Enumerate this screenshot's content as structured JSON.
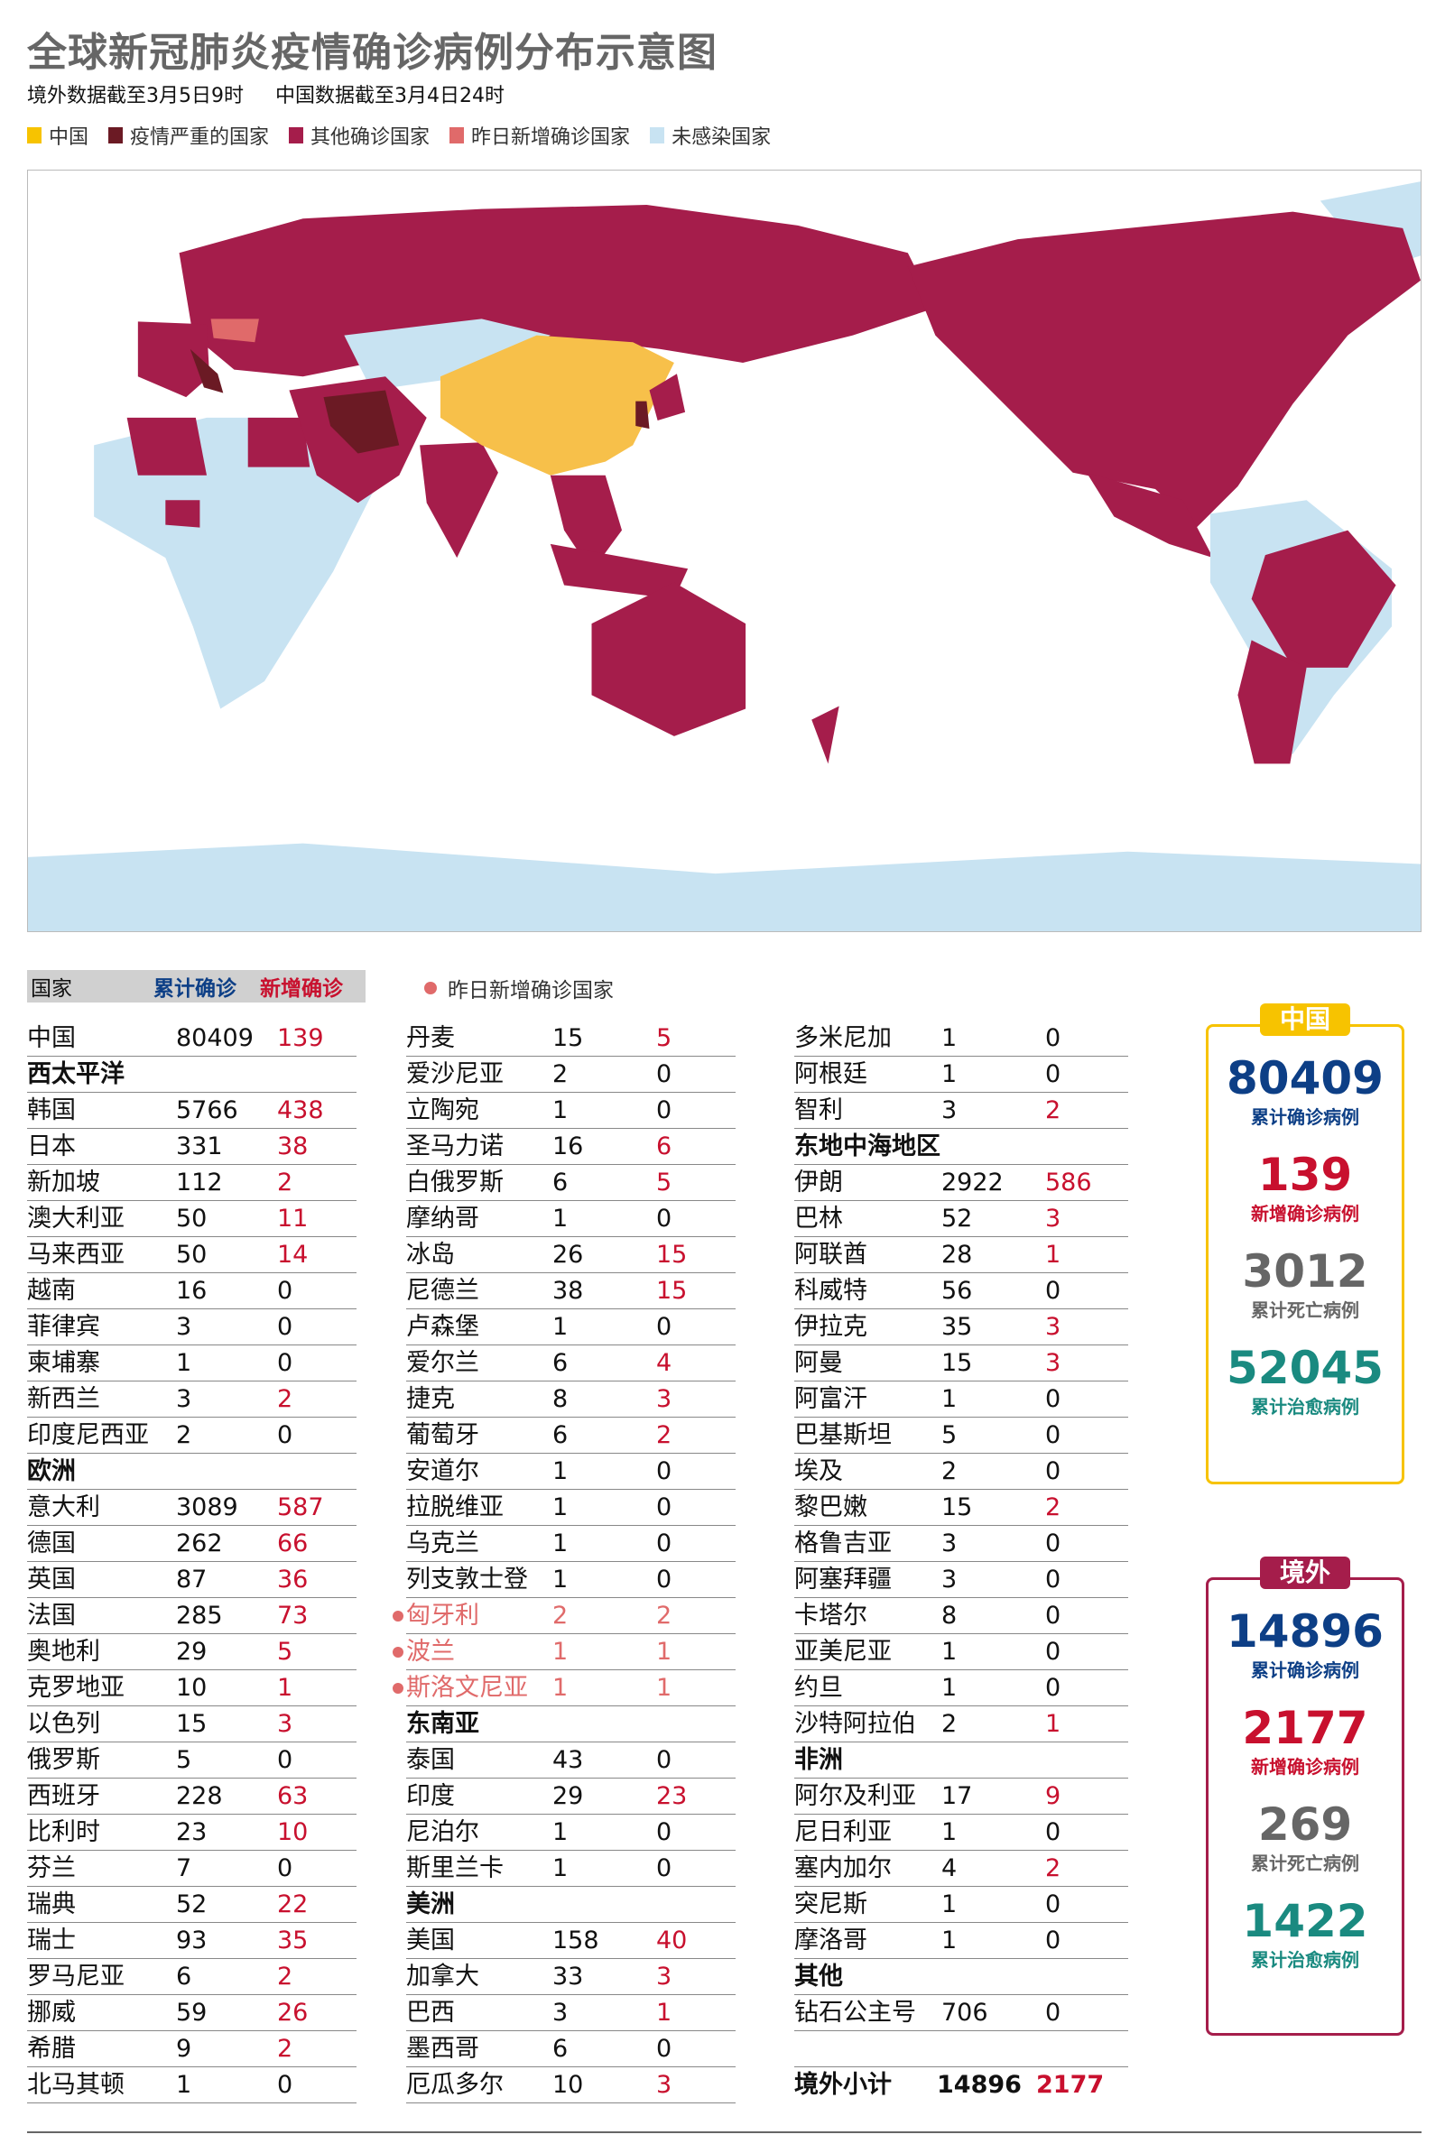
{
  "header": {
    "title": "全球新冠肺炎疫情确诊病例分布示意图",
    "subtitle_overseas": "境外数据截至3月5日9时",
    "subtitle_china": "中国数据截至3月4日24时"
  },
  "legend": [
    {
      "label": "中国",
      "color": "#f7c300"
    },
    {
      "label": "疫情严重的国家",
      "color": "#6b1a24"
    },
    {
      "label": "其他确诊国家",
      "color": "#a51d4b"
    },
    {
      "label": "昨日新增确诊国家",
      "color": "#e06a6a"
    },
    {
      "label": "未感染国家",
      "color": "#c8e3f2"
    }
  ],
  "table": {
    "header": {
      "country": "国家",
      "total": "累计确诊",
      "new": "新增确诊"
    },
    "dot_legend": "昨日新增确诊国家",
    "columns": [
      [
        {
          "name": "中国",
          "total": "80409",
          "new": "139"
        },
        {
          "name": "西太平洋",
          "region": true
        },
        {
          "name": "韩国",
          "total": "5766",
          "new": "438"
        },
        {
          "name": "日本",
          "total": "331",
          "new": "38"
        },
        {
          "name": "新加坡",
          "total": "112",
          "new": "2"
        },
        {
          "name": "澳大利亚",
          "total": "50",
          "new": "11"
        },
        {
          "name": "马来西亚",
          "total": "50",
          "new": "14"
        },
        {
          "name": "越南",
          "total": "16",
          "new": "0"
        },
        {
          "name": "菲律宾",
          "total": "3",
          "new": "0"
        },
        {
          "name": "柬埔寨",
          "total": "1",
          "new": "0"
        },
        {
          "name": "新西兰",
          "total": "3",
          "new": "2"
        },
        {
          "name": "印度尼西亚",
          "total": "2",
          "new": "0"
        },
        {
          "name": "欧洲",
          "region": true
        },
        {
          "name": "意大利",
          "total": "3089",
          "new": "587"
        },
        {
          "name": "德国",
          "total": "262",
          "new": "66"
        },
        {
          "name": "英国",
          "total": "87",
          "new": "36"
        },
        {
          "name": "法国",
          "total": "285",
          "new": "73"
        },
        {
          "name": "奥地利",
          "total": "29",
          "new": "5"
        },
        {
          "name": "克罗地亚",
          "total": "10",
          "new": "1"
        },
        {
          "name": "以色列",
          "total": "15",
          "new": "3"
        },
        {
          "name": "俄罗斯",
          "total": "5",
          "new": "0"
        },
        {
          "name": "西班牙",
          "total": "228",
          "new": "63"
        },
        {
          "name": "比利时",
          "total": "23",
          "new": "10"
        },
        {
          "name": "芬兰",
          "total": "7",
          "new": "0"
        },
        {
          "name": "瑞典",
          "total": "52",
          "new": "22"
        },
        {
          "name": "瑞士",
          "total": "93",
          "new": "35"
        },
        {
          "name": "罗马尼亚",
          "total": "6",
          "new": "2"
        },
        {
          "name": "挪威",
          "total": "59",
          "new": "26"
        },
        {
          "name": "希腊",
          "total": "9",
          "new": "2"
        },
        {
          "name": "北马其顿",
          "total": "1",
          "new": "0"
        }
      ],
      [
        {
          "name": "丹麦",
          "total": "15",
          "new": "5"
        },
        {
          "name": "爱沙尼亚",
          "total": "2",
          "new": "0"
        },
        {
          "name": "立陶宛",
          "total": "1",
          "new": "0"
        },
        {
          "name": "圣马力诺",
          "total": "16",
          "new": "6"
        },
        {
          "name": "白俄罗斯",
          "total": "6",
          "new": "5"
        },
        {
          "name": "摩纳哥",
          "total": "1",
          "new": "0"
        },
        {
          "name": "冰岛",
          "total": "26",
          "new": "15"
        },
        {
          "name": "尼德兰",
          "total": "38",
          "new": "15"
        },
        {
          "name": "卢森堡",
          "total": "1",
          "new": "0"
        },
        {
          "name": "爱尔兰",
          "total": "6",
          "new": "4"
        },
        {
          "name": "捷克",
          "total": "8",
          "new": "3"
        },
        {
          "name": "葡萄牙",
          "total": "6",
          "new": "2"
        },
        {
          "name": "安道尔",
          "total": "1",
          "new": "0"
        },
        {
          "name": "拉脱维亚",
          "total": "1",
          "new": "0"
        },
        {
          "name": "乌克兰",
          "total": "1",
          "new": "0"
        },
        {
          "name": "列支敦士登",
          "total": "1",
          "new": "0"
        },
        {
          "name": "匈牙利",
          "total": "2",
          "new": "2",
          "highlight": true
        },
        {
          "name": "波兰",
          "total": "1",
          "new": "1",
          "highlight": true
        },
        {
          "name": "斯洛文尼亚",
          "total": "1",
          "new": "1",
          "highlight": true
        },
        {
          "name": "东南亚",
          "region": true
        },
        {
          "name": "泰国",
          "total": "43",
          "new": "0"
        },
        {
          "name": "印度",
          "total": "29",
          "new": "23"
        },
        {
          "name": "尼泊尔",
          "total": "1",
          "new": "0"
        },
        {
          "name": "斯里兰卡",
          "total": "1",
          "new": "0"
        },
        {
          "name": "美洲",
          "region": true
        },
        {
          "name": "美国",
          "total": "158",
          "new": "40"
        },
        {
          "name": "加拿大",
          "total": "33",
          "new": "3"
        },
        {
          "name": "巴西",
          "total": "3",
          "new": "1"
        },
        {
          "name": "墨西哥",
          "total": "6",
          "new": "0"
        },
        {
          "name": "厄瓜多尔",
          "total": "10",
          "new": "3"
        }
      ],
      [
        {
          "name": "多米尼加",
          "total": "1",
          "new": "0"
        },
        {
          "name": "阿根廷",
          "total": "1",
          "new": "0"
        },
        {
          "name": "智利",
          "total": "3",
          "new": "2"
        },
        {
          "name": "东地中海地区",
          "region": true
        },
        {
          "name": "伊朗",
          "total": "2922",
          "new": "586"
        },
        {
          "name": "巴林",
          "total": "52",
          "new": "3"
        },
        {
          "name": "阿联酋",
          "total": "28",
          "new": "1"
        },
        {
          "name": "科威特",
          "total": "56",
          "new": "0"
        },
        {
          "name": "伊拉克",
          "total": "35",
          "new": "3"
        },
        {
          "name": "阿曼",
          "total": "15",
          "new": "3"
        },
        {
          "name": "阿富汗",
          "total": "1",
          "new": "0"
        },
        {
          "name": "巴基斯坦",
          "total": "5",
          "new": "0"
        },
        {
          "name": "埃及",
          "total": "2",
          "new": "0"
        },
        {
          "name": "黎巴嫩",
          "total": "15",
          "new": "2"
        },
        {
          "name": "格鲁吉亚",
          "total": "3",
          "new": "0"
        },
        {
          "name": "阿塞拜疆",
          "total": "3",
          "new": "0"
        },
        {
          "name": "卡塔尔",
          "total": "8",
          "new": "0"
        },
        {
          "name": "亚美尼亚",
          "total": "1",
          "new": "0"
        },
        {
          "name": "约旦",
          "total": "1",
          "new": "0"
        },
        {
          "name": "沙特阿拉伯",
          "total": "2",
          "new": "1"
        },
        {
          "name": "非洲",
          "region": true
        },
        {
          "name": "阿尔及利亚",
          "total": "17",
          "new": "9"
        },
        {
          "name": "尼日利亚",
          "total": "1",
          "new": "0"
        },
        {
          "name": "塞内加尔",
          "total": "4",
          "new": "2"
        },
        {
          "name": "突尼斯",
          "total": "1",
          "new": "0"
        },
        {
          "name": "摩洛哥",
          "total": "1",
          "new": "0"
        },
        {
          "name": "其他",
          "region": true
        },
        {
          "name": "钻石公主号",
          "total": "706",
          "new": "0"
        },
        {
          "blank": true
        },
        {
          "name": "境外小计",
          "total": "14896",
          "new": "2177",
          "total_row": true
        }
      ]
    ]
  },
  "panels": {
    "china": {
      "tag": "中国",
      "color": "#f7c300",
      "stats": [
        {
          "value": "80409",
          "label": "累计确诊病例",
          "color": "#0d3f86"
        },
        {
          "value": "139",
          "label": "新增确诊病例",
          "color": "#c8102e"
        },
        {
          "value": "3012",
          "label": "累计死亡病例",
          "color": "#666666"
        },
        {
          "value": "52045",
          "label": "累计治愈病例",
          "color": "#1a8a80"
        }
      ]
    },
    "overseas": {
      "tag": "境外",
      "color": "#a51d4b",
      "stats": [
        {
          "value": "14896",
          "label": "累计确诊病例",
          "color": "#0d3f86"
        },
        {
          "value": "2177",
          "label": "新增确诊病例",
          "color": "#c8102e"
        },
        {
          "value": "269",
          "label": "累计死亡病例",
          "color": "#666666"
        },
        {
          "value": "1422",
          "label": "累计治愈病例",
          "color": "#1a8a80"
        }
      ]
    }
  }
}
